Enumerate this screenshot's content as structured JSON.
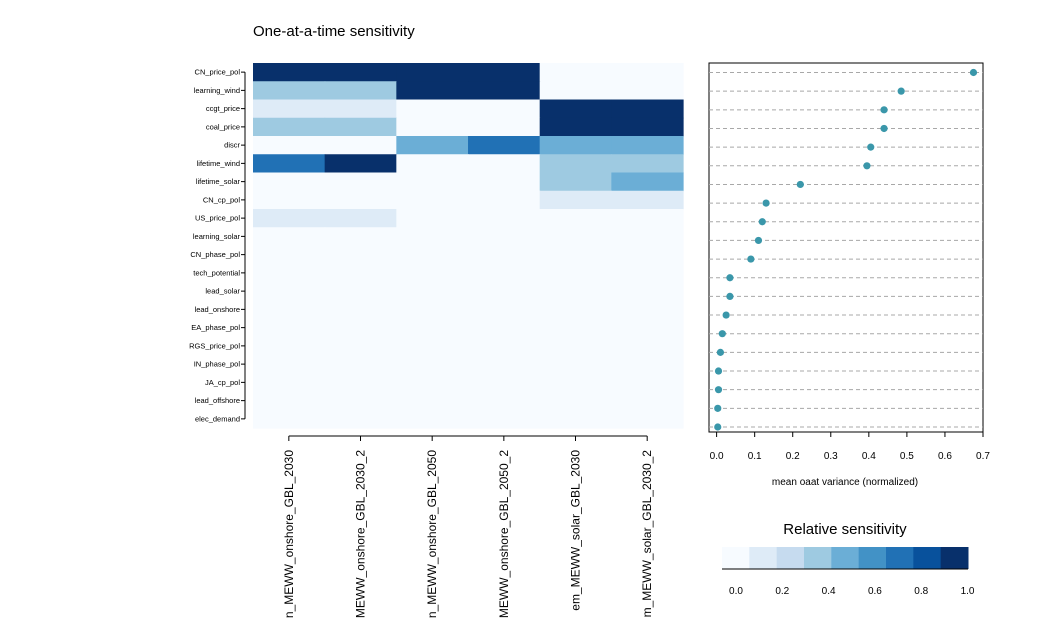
{
  "chart_data": [
    {
      "type": "heatmap",
      "title": "One-at-a-time sensitivity",
      "rows": [
        "CN_price_pol",
        "learning_wind",
        "ccgt_price",
        "coal_price",
        "discr",
        "lifetime_wind",
        "lifetime_solar",
        "CN_cp_pol",
        "US_price_pol",
        "learning_solar",
        "CN_phase_pol",
        "tech_potential",
        "lead_solar",
        "lead_onshore",
        "EA_phase_pol",
        "RGS_price_pol",
        "IN_phase_pol",
        "JA_cp_pol",
        "lead_offshore",
        "elec_demand"
      ],
      "columns": [
        "n_MEWW_onshore_GBL_2030",
        "MEWW_onshore_GBL_2030_2",
        "n_MEWW_onshore_GBL_2050",
        "MEWW_onshore_GBL_2050_2",
        "em_MEWW_solar_GBL_2030",
        "m_MEWW_solar_GBL_2030_2"
      ],
      "values": [
        [
          1.0,
          1.0,
          0.9,
          1.0,
          0.0,
          0.0
        ],
        [
          0.35,
          0.35,
          1.0,
          0.9,
          0.1,
          0.1
        ],
        [
          0.2,
          0.2,
          0.0,
          0.0,
          1.0,
          1.0
        ],
        [
          0.35,
          0.35,
          0.0,
          0.0,
          1.0,
          1.0
        ],
        [
          0.0,
          0.1,
          0.5,
          0.7,
          0.5,
          0.5
        ],
        [
          0.7,
          0.9,
          0.0,
          0.0,
          0.35,
          0.35
        ],
        [
          0.1,
          0.1,
          0.0,
          0.0,
          0.35,
          0.5
        ],
        [
          0.1,
          0.1,
          0.0,
          0.0,
          0.2,
          0.2
        ],
        [
          0.2,
          0.2,
          0.0,
          0.0,
          0.0,
          0.0
        ],
        [
          0.0,
          0.0,
          0.0,
          0.0,
          0.1,
          0.1
        ],
        [
          0.0,
          0.1,
          0.0,
          0.0,
          0.1,
          0.1
        ],
        [
          0.0,
          0.0,
          0.0,
          0.0,
          0.0,
          0.0
        ],
        [
          0.0,
          0.0,
          0.0,
          0.0,
          0.0,
          0.0
        ],
        [
          0.0,
          0.0,
          0.0,
          0.0,
          0.0,
          0.0
        ],
        [
          0.0,
          0.0,
          0.0,
          0.0,
          0.0,
          0.0
        ],
        [
          0.0,
          0.0,
          0.0,
          0.0,
          0.0,
          0.0
        ],
        [
          0.0,
          0.0,
          0.0,
          0.0,
          0.0,
          0.0
        ],
        [
          0.0,
          0.0,
          0.0,
          0.0,
          0.0,
          0.0
        ],
        [
          0.0,
          0.0,
          0.0,
          0.0,
          0.0,
          0.0
        ],
        [
          0.0,
          0.0,
          0.0,
          0.0,
          0.0,
          0.0
        ]
      ],
      "colorscale": [
        "#f7fbff",
        "#deebf7",
        "#c6dbef",
        "#9ecae1",
        "#6baed6",
        "#4292c6",
        "#2171b5",
        "#08519c",
        "#08306b"
      ]
    },
    {
      "type": "scatter",
      "xlabel": "mean oaat variance (normalized)",
      "xlim": [
        -0.02,
        0.7
      ],
      "xticks": [
        "0.0",
        "0.1",
        "0.2",
        "0.3",
        "0.4",
        "0.5",
        "0.6",
        "0.7"
      ],
      "categories": [
        "CN_price_pol",
        "learning_wind",
        "ccgt_price",
        "coal_price",
        "discr",
        "lifetime_wind",
        "lifetime_solar",
        "CN_cp_pol",
        "US_price_pol",
        "learning_solar",
        "CN_phase_pol",
        "tech_potential",
        "lead_solar",
        "lead_onshore",
        "EA_phase_pol",
        "RGS_price_pol",
        "IN_phase_pol",
        "JA_cp_pol",
        "lead_offshore",
        "elec_demand"
      ],
      "values": [
        0.675,
        0.485,
        0.44,
        0.44,
        0.405,
        0.395,
        0.22,
        0.13,
        0.12,
        0.11,
        0.09,
        0.035,
        0.035,
        0.025,
        0.015,
        0.01,
        0.005,
        0.005,
        0.003,
        0.003
      ],
      "point_color": "#3a97aa",
      "grid": true
    }
  ],
  "legend": {
    "title": "Relative sensitivity",
    "min": 0.0,
    "max": 1.0625,
    "ticks": [
      "0.0",
      "0.2",
      "0.4",
      "0.6",
      "0.8",
      "1.0"
    ]
  }
}
